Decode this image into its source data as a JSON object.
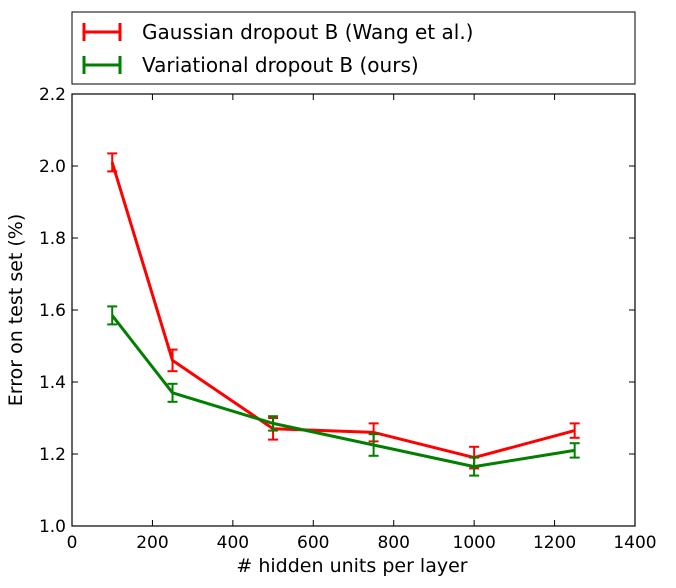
{
  "chart_data": {
    "type": "line",
    "xlabel": "# hidden units per layer",
    "ylabel": "Error on test set (%)",
    "xlim": [
      0,
      1400
    ],
    "ylim": [
      1.0,
      2.2
    ],
    "xticks": [
      0,
      200,
      400,
      600,
      800,
      1000,
      1200,
      1400
    ],
    "yticks": [
      1.0,
      1.2,
      1.4,
      1.6,
      1.8,
      2.0,
      2.2
    ],
    "xtick_labels": [
      "0",
      "200",
      "400",
      "600",
      "800",
      "1000",
      "1200",
      "1400"
    ],
    "ytick_labels": [
      "1.0",
      "1.2",
      "1.4",
      "1.6",
      "1.8",
      "2.0",
      "2.2"
    ],
    "grid": false,
    "legend_position": "above plot",
    "x": [
      100,
      250,
      500,
      750,
      1000,
      1250
    ],
    "series": [
      {
        "name": "Gaussian dropout B (Wang et al.)",
        "color": "#ff0000",
        "values": [
          2.01,
          1.46,
          1.27,
          1.26,
          1.19,
          1.265
        ],
        "err": [
          0.025,
          0.03,
          0.03,
          0.025,
          0.03,
          0.02
        ]
      },
      {
        "name": "Variational dropout B (ours)",
        "color": "#007f00",
        "values": [
          1.585,
          1.37,
          1.285,
          1.225,
          1.165,
          1.21
        ],
        "err": [
          0.025,
          0.025,
          0.02,
          0.03,
          0.025,
          0.02
        ]
      }
    ]
  }
}
